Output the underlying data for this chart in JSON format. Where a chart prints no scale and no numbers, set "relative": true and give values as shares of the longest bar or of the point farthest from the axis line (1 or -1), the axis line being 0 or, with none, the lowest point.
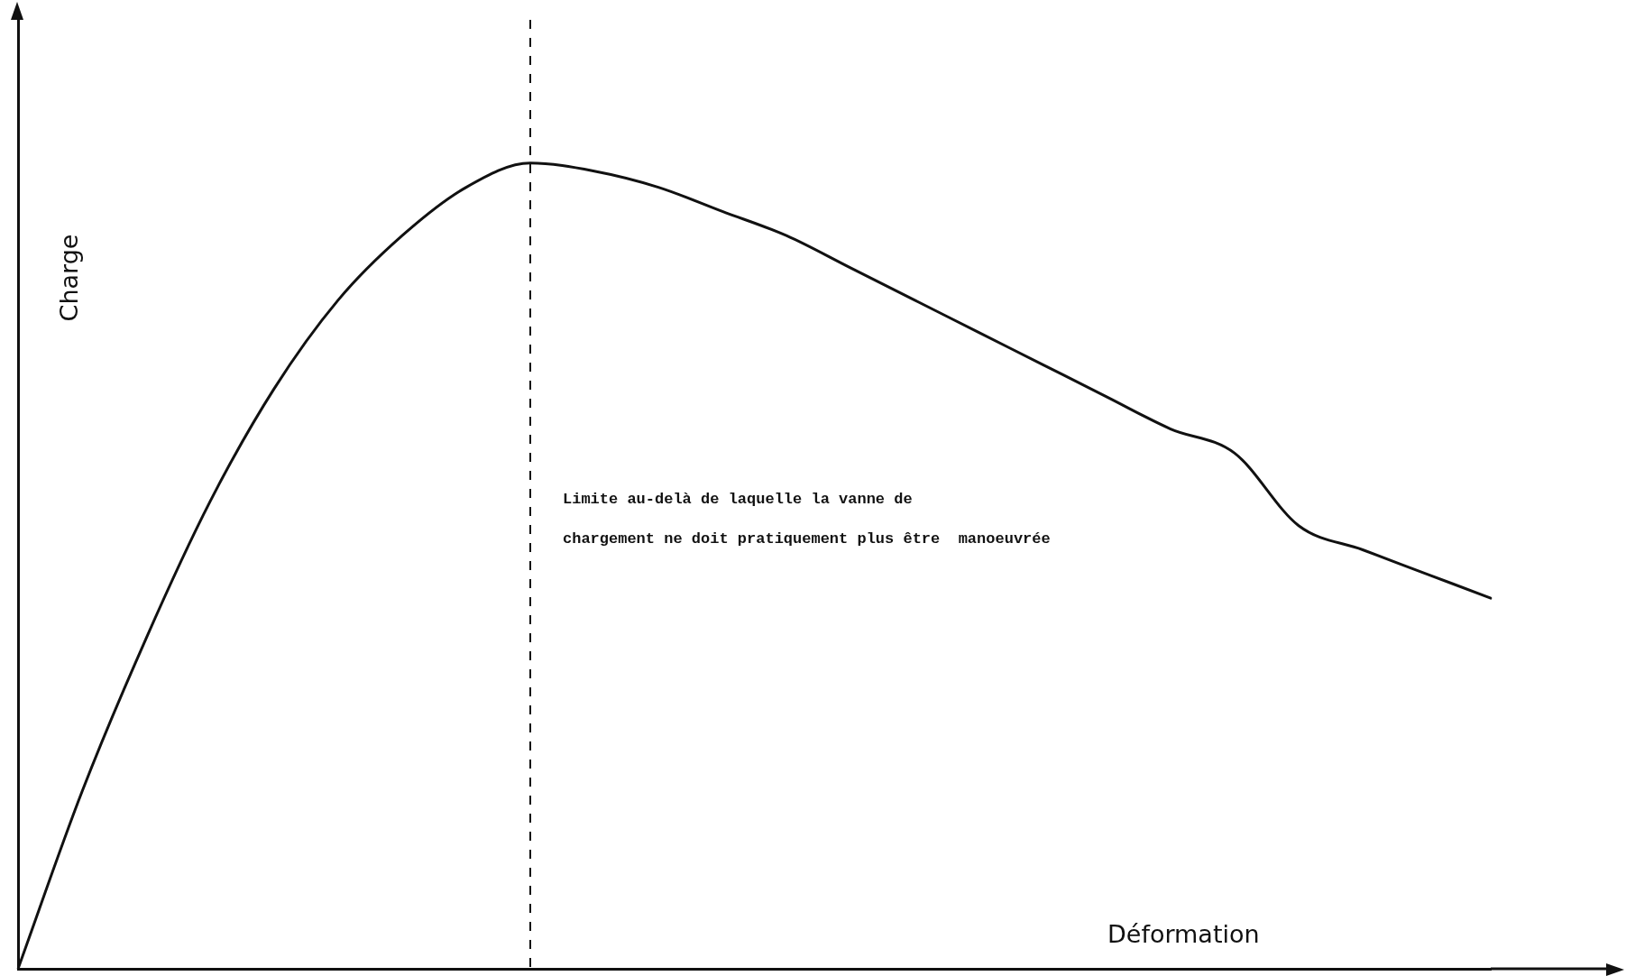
{
  "chart_data": {
    "type": "line",
    "relative": true,
    "xlabel": "Déformation",
    "ylabel": "Charge",
    "categories": [
      null,
      null,
      null,
      null,
      null,
      null,
      null,
      null,
      null,
      null,
      null,
      null,
      null,
      null,
      null,
      null,
      null,
      null,
      null,
      null,
      null,
      null,
      null,
      null
    ],
    "series": [
      {
        "color": "#111111",
        "values": [
          0,
          0.22,
          0.41,
          0.58,
          0.72,
          0.83,
          0.91,
          0.97,
          1.0,
          0.99,
          0.97,
          0.94,
          0.91,
          0.87,
          0.83,
          0.79,
          0.75,
          0.71,
          0.67,
          0.64,
          0.55,
          0.52,
          0.49,
          0.46
        ]
      }
    ],
    "annotations": [
      "Limite au-delà de laquelle la vanne de\nchargement ne doit pratiquement plus être  manoeuvrée"
    ],
    "grid": false,
    "legend": false,
    "marker": "none",
    "line_style": "solid"
  }
}
